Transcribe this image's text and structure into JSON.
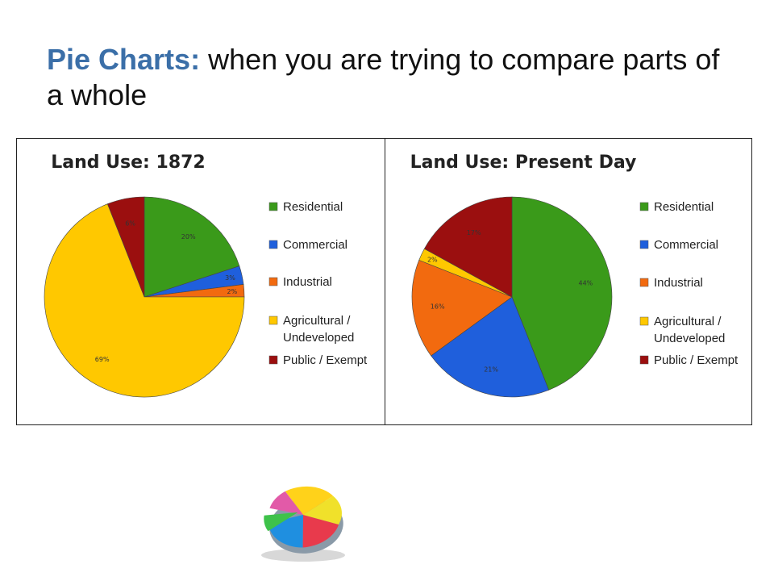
{
  "slide": {
    "title_lead": "Pie Charts:",
    "title_rest": "when you are trying to compare parts of a whole"
  },
  "colors": {
    "title_accent": "#3b6fa8",
    "residential": "#3a9a1a",
    "commercial": "#1f5fdc",
    "industrial": "#f26a0f",
    "agricultural": "#ffc800",
    "public": "#9b0f0f"
  },
  "chart_data": [
    {
      "type": "pie",
      "title": "Land Use: 1872",
      "legend_position": "right",
      "categories": [
        "Residential",
        "Commercial",
        "Industrial",
        "Agricultural / Undeveloped",
        "Public / Exempt"
      ],
      "legend_lines": [
        [
          "Residential"
        ],
        [
          "Commercial"
        ],
        [
          "Industrial"
        ],
        [
          "Agricultural /",
          "Undeveloped"
        ],
        [
          "Public / Exempt"
        ]
      ],
      "values": [
        20,
        3,
        2,
        69,
        6
      ],
      "value_labels": [
        "20%",
        "3%",
        "2%",
        "69%",
        "6%"
      ]
    },
    {
      "type": "pie",
      "title": "Land Use: Present Day",
      "legend_position": "right",
      "categories": [
        "Residential",
        "Commercial",
        "Industrial",
        "Agricultural / Undeveloped",
        "Public / Exempt"
      ],
      "legend_lines": [
        [
          "Residential"
        ],
        [
          "Commercial"
        ],
        [
          "Industrial"
        ],
        [
          "Agricultural /",
          "Undeveloped"
        ],
        [
          "Public / Exempt"
        ]
      ],
      "values": [
        44,
        21,
        16,
        2,
        17
      ],
      "value_labels": [
        "44%",
        "21%",
        "16%",
        "2%",
        "17%"
      ]
    }
  ],
  "decor": {
    "icon": "3d-pie-chart-icon"
  }
}
